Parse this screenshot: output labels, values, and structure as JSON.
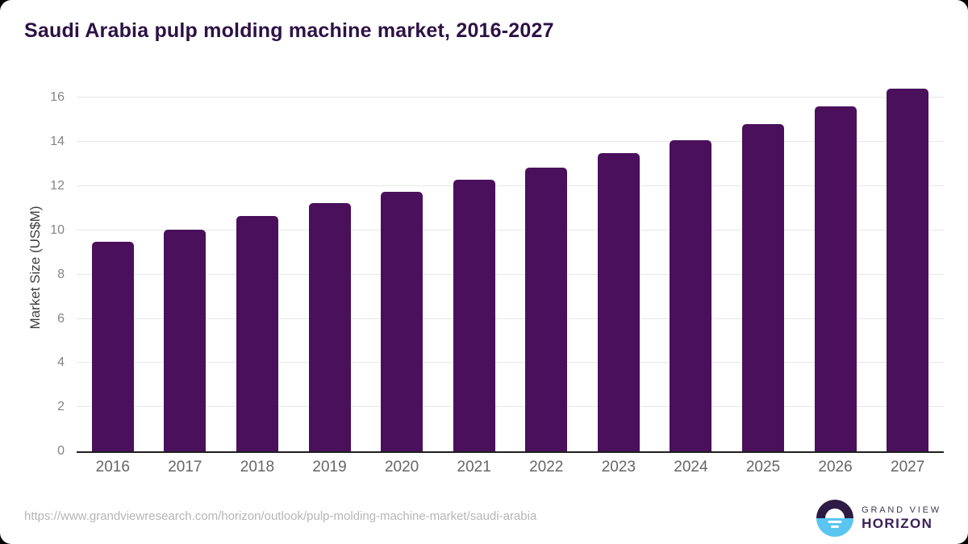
{
  "title": "Saudi Arabia pulp molding machine market, 2016-2027",
  "footer": {
    "source_url": "https://www.grandviewresearch.com/horizon/outlook/pulp-molding-machine-market/saudi-arabia",
    "brand": {
      "line1": "GRAND VIEW",
      "line2": "HORIZON"
    }
  },
  "colors": {
    "bar": "#4a105c",
    "title": "#2d1245",
    "grid": "#e7e7e7",
    "axis_line": "#1f1f1f",
    "tick_label": "#858585",
    "x_label": "#666666",
    "axis_title": "#3d3d3d",
    "url": "#b5b5b5",
    "logo_top": "#2d1b45",
    "logo_bottom": "#5bc5f2",
    "logo_text_small": "#3a3950",
    "logo_text_big": "#3b1f57"
  },
  "chart_data": {
    "type": "bar",
    "title": "Saudi Arabia pulp molding machine market, 2016-2027",
    "categories": [
      "2016",
      "2017",
      "2018",
      "2019",
      "2020",
      "2021",
      "2022",
      "2023",
      "2024",
      "2025",
      "2026",
      "2027"
    ],
    "values": [
      9.5,
      10.05,
      10.65,
      11.25,
      11.75,
      12.3,
      12.85,
      13.5,
      14.1,
      14.8,
      15.6,
      16.4
    ],
    "xlabel": "",
    "ylabel": "Market Size (US$M)",
    "ylim": [
      0,
      16.6
    ],
    "yticks": [
      0,
      2,
      4,
      6,
      8,
      10,
      12,
      14,
      16
    ],
    "grid": "horizontal",
    "legend": "none",
    "bar_color": "#4a105c"
  }
}
